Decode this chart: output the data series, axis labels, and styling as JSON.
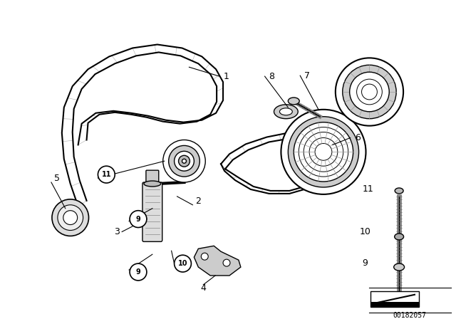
{
  "background_color": "#ffffff",
  "image_number": "00182057",
  "line_color": "#000000"
}
